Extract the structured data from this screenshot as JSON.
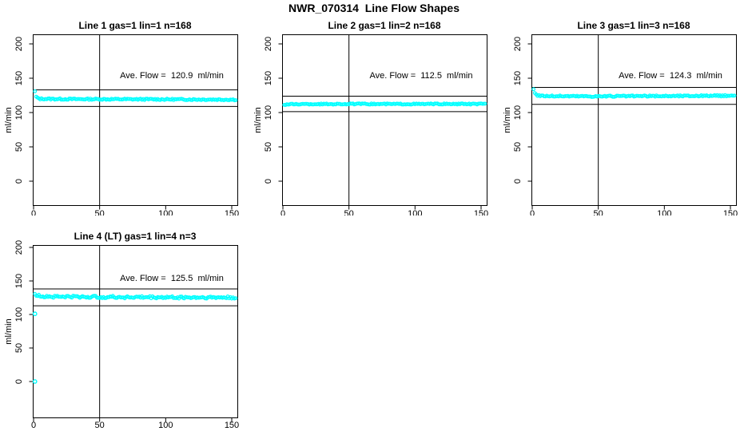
{
  "page_title": "NWR_070314  Line Flow Shapes",
  "colors": {
    "background": "#ffffff",
    "axis": "#000000",
    "points": "#00ffff",
    "text": "#000000"
  },
  "chart_data": [
    {
      "type": "scatter",
      "title": "Line 1 gas=1 lin=1 n=168",
      "gas": 1,
      "lin": 1,
      "n": 168,
      "annotation": "Ave. Flow =  120.9  ml/min",
      "ave_flow_ml_min": 120.9,
      "xlabel": "",
      "ylabel": "ml/min",
      "x_ticks": [
        0,
        50,
        100,
        150
      ],
      "y_ticks": [
        0,
        50,
        100,
        150,
        200
      ],
      "xlim": [
        0,
        154
      ],
      "ylim": [
        0,
        210
      ],
      "grid": false,
      "vline_x": 50,
      "hlines": [
        108.8,
        133.0
      ],
      "series": {
        "name": "flow",
        "x_start": 1,
        "x_end": 153,
        "profile": [
          [
            1,
            130.5
          ],
          [
            2,
            123.0
          ],
          [
            3,
            121.0
          ],
          [
            5,
            120.0
          ],
          [
            20,
            119.6
          ],
          [
            60,
            119.4
          ],
          [
            100,
            119.2
          ],
          [
            153,
            118.8
          ]
        ],
        "noise": 1.0
      },
      "outliers": []
    },
    {
      "type": "scatter",
      "title": "Line 2 gas=1 lin=2 n=168",
      "gas": 1,
      "lin": 2,
      "n": 168,
      "annotation": "Ave. Flow =  112.5  ml/min",
      "ave_flow_ml_min": 112.5,
      "xlabel": "",
      "ylabel": "ml/min",
      "x_ticks": [
        0,
        50,
        100,
        150
      ],
      "y_ticks": [
        0,
        50,
        100,
        150,
        200
      ],
      "xlim": [
        0,
        154
      ],
      "ylim": [
        0,
        210
      ],
      "grid": false,
      "vline_x": 50,
      "hlines": [
        101.3,
        123.8
      ],
      "series": {
        "name": "flow",
        "x_start": 1,
        "x_end": 153,
        "profile": [
          [
            1,
            111.2
          ],
          [
            3,
            111.8
          ],
          [
            10,
            112.2
          ],
          [
            60,
            112.4
          ],
          [
            153,
            112.4
          ]
        ],
        "noise": 0.8
      },
      "outliers": []
    },
    {
      "type": "scatter",
      "title": "Line 3 gas=1 lin=3 n=168",
      "gas": 1,
      "lin": 3,
      "n": 168,
      "annotation": "Ave. Flow =  124.3  ml/min",
      "ave_flow_ml_min": 124.3,
      "xlabel": "",
      "ylabel": "ml/min",
      "x_ticks": [
        0,
        50,
        100,
        150
      ],
      "y_ticks": [
        0,
        50,
        100,
        150,
        200
      ],
      "xlim": [
        0,
        154
      ],
      "ylim": [
        0,
        210
      ],
      "grid": false,
      "vline_x": 50,
      "hlines": [
        111.9,
        136.7
      ],
      "series": {
        "name": "flow",
        "x_start": 1,
        "x_end": 153,
        "profile": [
          [
            1,
            134.5
          ],
          [
            2,
            128.0
          ],
          [
            4,
            125.0
          ],
          [
            10,
            124.0
          ],
          [
            50,
            123.6
          ],
          [
            100,
            124.0
          ],
          [
            153,
            124.6
          ]
        ],
        "noise": 1.0
      },
      "outliers": []
    },
    {
      "type": "scatter",
      "title": "Line 4 (LT) gas=1 lin=4 n=3",
      "gas": 1,
      "lin": 4,
      "n": 3,
      "annotation": "Ave. Flow =  125.5  ml/min",
      "ave_flow_ml_min": 125.5,
      "xlabel": "",
      "ylabel": "ml/min",
      "x_ticks": [
        0,
        50,
        100,
        150
      ],
      "y_ticks": [
        0,
        50,
        100,
        150,
        200
      ],
      "xlim": [
        0,
        154
      ],
      "ylim": [
        0,
        210
      ],
      "grid": false,
      "vline_x": 50,
      "hlines": [
        113.0,
        138.1
      ],
      "series": {
        "name": "flow",
        "x_start": 1,
        "x_end": 153,
        "profile": [
          [
            1,
            129.0
          ],
          [
            4,
            128.0
          ],
          [
            12,
            126.8
          ],
          [
            40,
            126.2
          ],
          [
            90,
            125.6
          ],
          [
            153,
            125.2
          ]
        ],
        "noise": 1.8
      },
      "outliers": [
        [
          1,
          101
        ],
        [
          1,
          0
        ]
      ]
    }
  ]
}
